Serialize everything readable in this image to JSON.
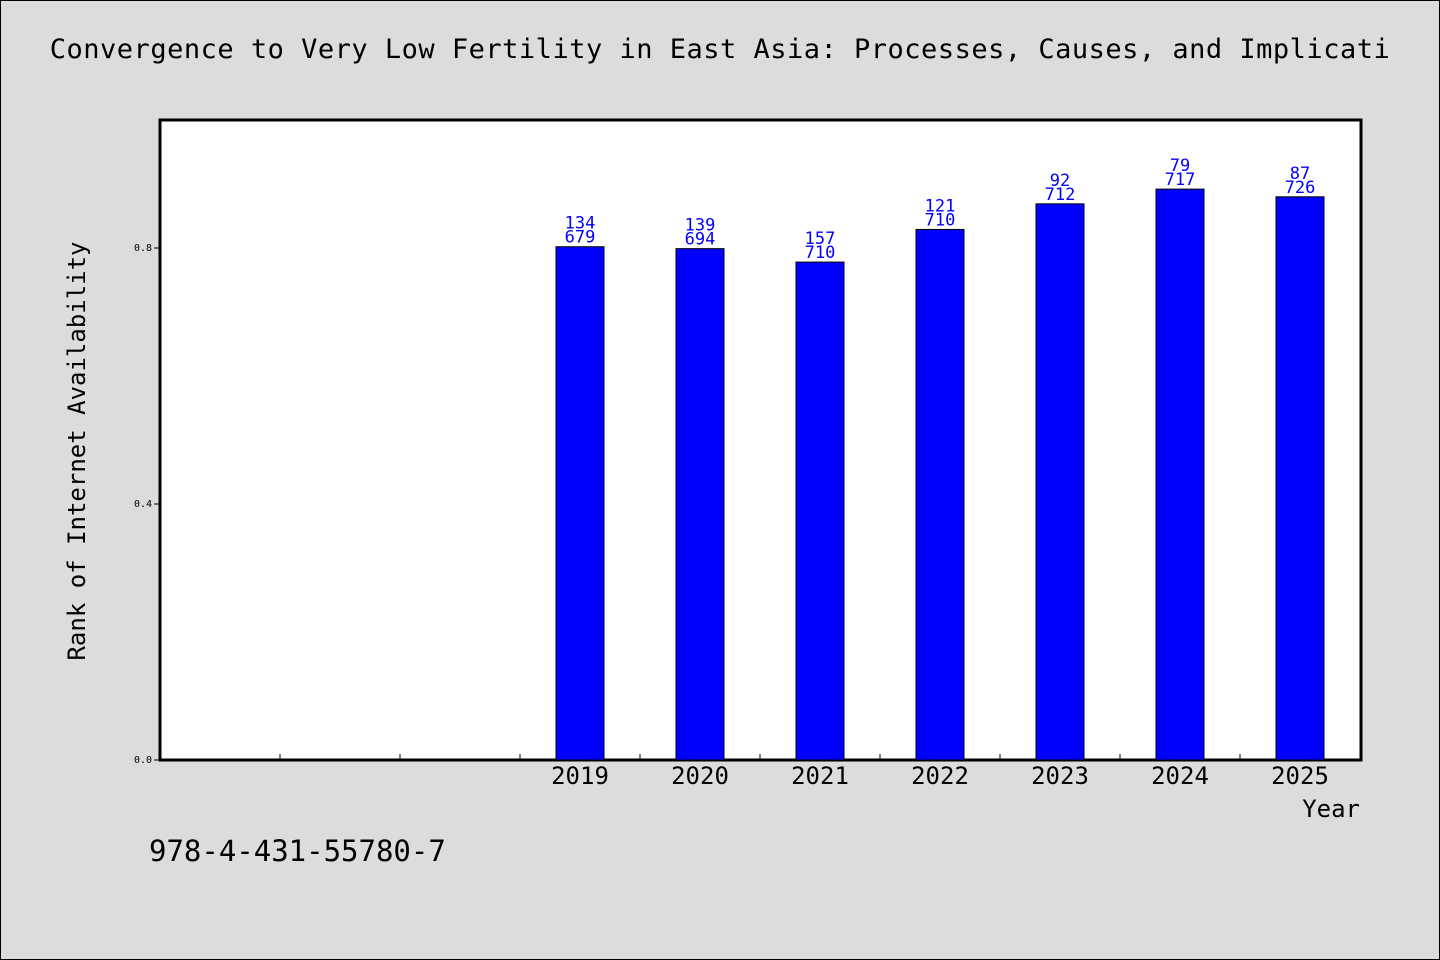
{
  "chart_data": {
    "type": "bar",
    "title": "Convergence to Very Low Fertility in East Asia: Processes, Causes, and Implicati",
    "xlabel": "Year",
    "ylabel": "Rank of Internet Availability",
    "categories": [
      "",
      "",
      "",
      "2019",
      "2020",
      "2021",
      "2022",
      "2023",
      "2024",
      "2025"
    ],
    "values": [
      null,
      null,
      null,
      0.802,
      0.799,
      0.778,
      0.829,
      0.869,
      0.892,
      0.88
    ],
    "bar_labels": [
      null,
      null,
      null,
      [
        "134",
        "679"
      ],
      [
        "139",
        "694"
      ],
      [
        "157",
        "710"
      ],
      [
        "121",
        "710"
      ],
      [
        "92",
        "712"
      ],
      [
        "79",
        "717"
      ],
      [
        "87",
        "726"
      ]
    ],
    "yticks": [
      "0.0",
      "0.4",
      "0.8"
    ],
    "ytick_values": [
      0.0,
      0.4,
      0.8
    ],
    "ylim": [
      0.0,
      1.0
    ],
    "grid": false,
    "bar_color": "#0000ff",
    "label_color": "#0000ff"
  },
  "footer": {
    "isbn": "978-4-431-55780-7"
  }
}
